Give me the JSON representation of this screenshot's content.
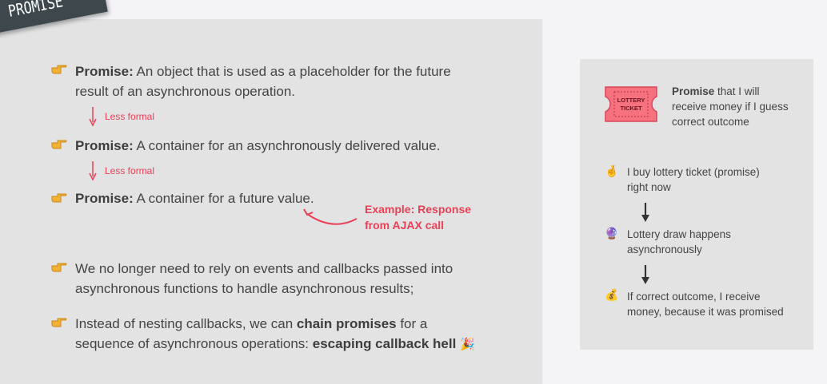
{
  "ribbon": {
    "title": "PROMISE"
  },
  "main": {
    "definitions": [
      {
        "term": "Promise:",
        "text": " An object that is used as a placeholder for the future",
        "text2": "result of an asynchronous operation."
      },
      {
        "term": "Promise:",
        "text": " A container for an asynchronously delivered value."
      },
      {
        "term": "Promise:",
        "text": " A container for a future value."
      }
    ],
    "less_formal_1": "Less formal",
    "less_formal_2": "Less formal",
    "example": {
      "label": "Example:",
      "text1": " Response",
      "text2": "from AJAX call"
    },
    "point1": {
      "line1": "We no longer need to rely on events and callbacks passed into",
      "line2": "asynchronous functions to handle asynchronous results;"
    },
    "point2": {
      "line1_a": "Instead of nesting callbacks, we can ",
      "line1_b": "chain promises",
      "line1_c": " for a",
      "line2_a": "sequence of asynchronous operations: ",
      "line2_b": "escaping callback hell",
      "emoji": "🎉"
    }
  },
  "side": {
    "ticket": {
      "line1": "LOTTERY",
      "line2": "TICKET"
    },
    "promise_bold": "Promise",
    "promise_rest": " that I will",
    "promise_line2": "receive money if I guess",
    "promise_line3": "correct outcome",
    "steps": [
      {
        "emoji": "🤞",
        "line1": "I buy lottery ticket (promise)",
        "line2": "right now"
      },
      {
        "emoji": "🔮",
        "line1": "Lottery draw happens",
        "line2": "asynchronously"
      },
      {
        "emoji": "💰",
        "line1": "If correct outcome, I receive",
        "line2": "money, because it was promised"
      }
    ]
  },
  "colors": {
    "accent": "#e94057",
    "panel": "#e3e3e3",
    "ribbon": "#3d474c",
    "background": "#f4f3f6"
  }
}
